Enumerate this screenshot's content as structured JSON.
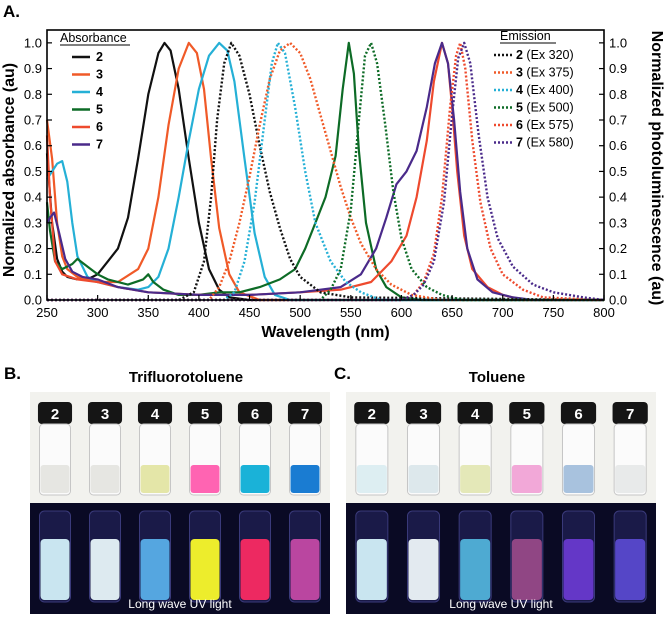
{
  "panels": {
    "a_label": "A.",
    "b_label": "B.",
    "c_label": "C.",
    "b_title": "Trifluorotoluene",
    "c_title": "Toluene",
    "uv_caption": "Long wave UV light",
    "vial_labels": [
      "2",
      "3",
      "4",
      "5",
      "6",
      "7"
    ],
    "daylight_b": [
      "#e6e6e2",
      "#e6e6e2",
      "#e4e6a8",
      "#ff64b2",
      "#1ab2d8",
      "#1a7cd2"
    ],
    "uv_b": [
      "#d8f6ff",
      "#eefcff",
      "#5ab2ee",
      "#ffff2a",
      "#ff2a64",
      "#c84aa8"
    ],
    "daylight_c": [
      "#ddeef2",
      "#dde8ec",
      "#e4e8b8",
      "#f2a8d8",
      "#a8c2de",
      "#e8eaea"
    ],
    "uv_c": [
      "#d8f6ff",
      "#f4fcff",
      "#52b6de",
      "#9a4a8a",
      "#6a3ad2",
      "#5a4ad2"
    ]
  },
  "chart_data": {
    "type": "line",
    "xlabel": "Wavelength (nm)",
    "ylabel_left": "Normalized absorbance (au)",
    "ylabel_right": "Normalized photoluminescence (au)",
    "xlim": [
      250,
      800
    ],
    "ylim": [
      0,
      1.05
    ],
    "xticks": [
      250,
      300,
      350,
      400,
      450,
      500,
      550,
      600,
      650,
      700,
      750,
      800
    ],
    "yticks": [
      0.0,
      0.1,
      0.2,
      0.3,
      0.4,
      0.5,
      0.6,
      0.7,
      0.8,
      0.9,
      1.0
    ],
    "grid": false,
    "legend_absorbance": {
      "title": "Absorbance",
      "entries": [
        {
          "num": "2",
          "text": ""
        },
        {
          "num": "3",
          "text": ""
        },
        {
          "num": "4",
          "text": ""
        },
        {
          "num": "5",
          "text": ""
        },
        {
          "num": "6",
          "text": ""
        },
        {
          "num": "7",
          "text": ""
        }
      ]
    },
    "legend_emission": {
      "title": "Emission",
      "entries": [
        {
          "num": "2",
          "text": " (Ex 320)"
        },
        {
          "num": "3",
          "text": " (Ex 375)"
        },
        {
          "num": "4",
          "text": " (Ex 400)"
        },
        {
          "num": "5",
          "text": " (Ex 500)"
        },
        {
          "num": "6",
          "text": " (Ex 575)"
        },
        {
          "num": "7",
          "text": " (Ex 580)"
        }
      ]
    },
    "colors": {
      "2": "#111111",
      "3": "#f05a28",
      "4": "#25b0d6",
      "5": "#0d6b26",
      "6": "#ee4a2e",
      "7": "#4a2a8a"
    },
    "absorbance": [
      {
        "id": "2",
        "points": [
          [
            250,
            0.57
          ],
          [
            255,
            0.3
          ],
          [
            260,
            0.16
          ],
          [
            265,
            0.11
          ],
          [
            270,
            0.09
          ],
          [
            280,
            0.08
          ],
          [
            290,
            0.08
          ],
          [
            300,
            0.1
          ],
          [
            310,
            0.15
          ],
          [
            320,
            0.2
          ],
          [
            330,
            0.32
          ],
          [
            340,
            0.55
          ],
          [
            350,
            0.8
          ],
          [
            360,
            0.96
          ],
          [
            366,
            1.0
          ],
          [
            372,
            0.97
          ],
          [
            380,
            0.82
          ],
          [
            390,
            0.55
          ],
          [
            400,
            0.3
          ],
          [
            410,
            0.12
          ],
          [
            420,
            0.04
          ],
          [
            430,
            0.01
          ],
          [
            450,
            0.0
          ],
          [
            800,
            0.0
          ]
        ]
      },
      {
        "id": "3",
        "points": [
          [
            250,
            0.7
          ],
          [
            255,
            0.55
          ],
          [
            260,
            0.3
          ],
          [
            265,
            0.17
          ],
          [
            270,
            0.12
          ],
          [
            280,
            0.09
          ],
          [
            300,
            0.07
          ],
          [
            320,
            0.07
          ],
          [
            340,
            0.12
          ],
          [
            350,
            0.2
          ],
          [
            360,
            0.4
          ],
          [
            370,
            0.68
          ],
          [
            380,
            0.9
          ],
          [
            390,
            1.0
          ],
          [
            398,
            0.96
          ],
          [
            405,
            0.82
          ],
          [
            412,
            0.55
          ],
          [
            420,
            0.28
          ],
          [
            430,
            0.1
          ],
          [
            440,
            0.03
          ],
          [
            460,
            0.0
          ],
          [
            800,
            0.0
          ]
        ]
      },
      {
        "id": "4",
        "points": [
          [
            250,
            0.47
          ],
          [
            255,
            0.5
          ],
          [
            260,
            0.53
          ],
          [
            265,
            0.54
          ],
          [
            270,
            0.46
          ],
          [
            275,
            0.3
          ],
          [
            280,
            0.17
          ],
          [
            290,
            0.09
          ],
          [
            300,
            0.07
          ],
          [
            320,
            0.05
          ],
          [
            340,
            0.04
          ],
          [
            350,
            0.05
          ],
          [
            360,
            0.09
          ],
          [
            370,
            0.2
          ],
          [
            380,
            0.4
          ],
          [
            390,
            0.62
          ],
          [
            400,
            0.82
          ],
          [
            410,
            0.95
          ],
          [
            420,
            1.0
          ],
          [
            428,
            0.97
          ],
          [
            435,
            0.85
          ],
          [
            445,
            0.55
          ],
          [
            455,
            0.26
          ],
          [
            465,
            0.09
          ],
          [
            475,
            0.02
          ],
          [
            490,
            0.0
          ],
          [
            800,
            0.0
          ]
        ]
      },
      {
        "id": "5",
        "points": [
          [
            250,
            0.38
          ],
          [
            253,
            0.27
          ],
          [
            258,
            0.15
          ],
          [
            265,
            0.12
          ],
          [
            275,
            0.14
          ],
          [
            280,
            0.16
          ],
          [
            290,
            0.13
          ],
          [
            300,
            0.1
          ],
          [
            310,
            0.08
          ],
          [
            330,
            0.06
          ],
          [
            345,
            0.08
          ],
          [
            350,
            0.1
          ],
          [
            355,
            0.07
          ],
          [
            365,
            0.04
          ],
          [
            380,
            0.02
          ],
          [
            400,
            0.02
          ],
          [
            420,
            0.03
          ],
          [
            440,
            0.03
          ],
          [
            460,
            0.05
          ],
          [
            480,
            0.08
          ],
          [
            495,
            0.12
          ],
          [
            505,
            0.2
          ],
          [
            515,
            0.3
          ],
          [
            525,
            0.4
          ],
          [
            535,
            0.56
          ],
          [
            542,
            0.82
          ],
          [
            548,
            1.0
          ],
          [
            553,
            0.88
          ],
          [
            558,
            0.58
          ],
          [
            565,
            0.3
          ],
          [
            575,
            0.12
          ],
          [
            585,
            0.05
          ],
          [
            600,
            0.01
          ],
          [
            620,
            0.0
          ],
          [
            800,
            0.0
          ]
        ]
      },
      {
        "id": "6",
        "points": [
          [
            250,
            0.64
          ],
          [
            253,
            0.4
          ],
          [
            258,
            0.15
          ],
          [
            265,
            0.1
          ],
          [
            280,
            0.08
          ],
          [
            300,
            0.07
          ],
          [
            320,
            0.05
          ],
          [
            350,
            0.03
          ],
          [
            400,
            0.02
          ],
          [
            450,
            0.02
          ],
          [
            500,
            0.03
          ],
          [
            540,
            0.04
          ],
          [
            570,
            0.07
          ],
          [
            590,
            0.15
          ],
          [
            605,
            0.25
          ],
          [
            615,
            0.4
          ],
          [
            625,
            0.62
          ],
          [
            632,
            0.85
          ],
          [
            640,
            1.0
          ],
          [
            646,
            0.92
          ],
          [
            650,
            0.75
          ],
          [
            655,
            0.5
          ],
          [
            662,
            0.25
          ],
          [
            670,
            0.12
          ],
          [
            685,
            0.05
          ],
          [
            700,
            0.02
          ],
          [
            720,
            0.0
          ],
          [
            800,
            0.0
          ]
        ]
      },
      {
        "id": "7",
        "points": [
          [
            250,
            0.3
          ],
          [
            253,
            0.32
          ],
          [
            257,
            0.34
          ],
          [
            262,
            0.26
          ],
          [
            268,
            0.16
          ],
          [
            275,
            0.11
          ],
          [
            285,
            0.09
          ],
          [
            300,
            0.08
          ],
          [
            320,
            0.05
          ],
          [
            350,
            0.03
          ],
          [
            400,
            0.02
          ],
          [
            450,
            0.02
          ],
          [
            500,
            0.03
          ],
          [
            540,
            0.05
          ],
          [
            560,
            0.1
          ],
          [
            575,
            0.2
          ],
          [
            585,
            0.32
          ],
          [
            595,
            0.45
          ],
          [
            605,
            0.5
          ],
          [
            615,
            0.58
          ],
          [
            625,
            0.75
          ],
          [
            633,
            0.92
          ],
          [
            640,
            1.0
          ],
          [
            646,
            0.92
          ],
          [
            652,
            0.7
          ],
          [
            658,
            0.42
          ],
          [
            665,
            0.2
          ],
          [
            675,
            0.08
          ],
          [
            690,
            0.03
          ],
          [
            710,
            0.01
          ],
          [
            730,
            0.0
          ],
          [
            800,
            0.0
          ]
        ]
      }
    ],
    "emission": [
      {
        "id": "2",
        "points": [
          [
            250,
            0.0
          ],
          [
            380,
            0.0
          ],
          [
            395,
            0.03
          ],
          [
            405,
            0.15
          ],
          [
            412,
            0.4
          ],
          [
            418,
            0.7
          ],
          [
            425,
            0.92
          ],
          [
            432,
            1.0
          ],
          [
            440,
            0.95
          ],
          [
            450,
            0.8
          ],
          [
            460,
            0.6
          ],
          [
            470,
            0.42
          ],
          [
            480,
            0.28
          ],
          [
            490,
            0.16
          ],
          [
            500,
            0.09
          ],
          [
            520,
            0.03
          ],
          [
            550,
            0.01
          ],
          [
            800,
            0.0
          ]
        ]
      },
      {
        "id": "3",
        "points": [
          [
            250,
            0.0
          ],
          [
            410,
            0.0
          ],
          [
            420,
            0.05
          ],
          [
            430,
            0.15
          ],
          [
            440,
            0.3
          ],
          [
            450,
            0.48
          ],
          [
            460,
            0.68
          ],
          [
            470,
            0.86
          ],
          [
            480,
            0.97
          ],
          [
            490,
            1.0
          ],
          [
            500,
            0.96
          ],
          [
            510,
            0.86
          ],
          [
            520,
            0.72
          ],
          [
            530,
            0.58
          ],
          [
            540,
            0.44
          ],
          [
            550,
            0.32
          ],
          [
            560,
            0.22
          ],
          [
            575,
            0.12
          ],
          [
            590,
            0.06
          ],
          [
            610,
            0.02
          ],
          [
            640,
            0.0
          ],
          [
            800,
            0.0
          ]
        ]
      },
      {
        "id": "4",
        "points": [
          [
            250,
            0.0
          ],
          [
            425,
            0.0
          ],
          [
            435,
            0.03
          ],
          [
            445,
            0.15
          ],
          [
            455,
            0.38
          ],
          [
            465,
            0.7
          ],
          [
            472,
            0.92
          ],
          [
            478,
            1.0
          ],
          [
            485,
            0.96
          ],
          [
            495,
            0.75
          ],
          [
            505,
            0.5
          ],
          [
            515,
            0.3
          ],
          [
            530,
            0.15
          ],
          [
            545,
            0.07
          ],
          [
            560,
            0.03
          ],
          [
            580,
            0.0
          ],
          [
            800,
            0.0
          ]
        ]
      },
      {
        "id": "5",
        "points": [
          [
            250,
            0.0
          ],
          [
            520,
            0.0
          ],
          [
            530,
            0.04
          ],
          [
            540,
            0.12
          ],
          [
            550,
            0.35
          ],
          [
            558,
            0.7
          ],
          [
            564,
            0.95
          ],
          [
            570,
            1.0
          ],
          [
            576,
            0.92
          ],
          [
            584,
            0.68
          ],
          [
            592,
            0.42
          ],
          [
            600,
            0.24
          ],
          [
            610,
            0.12
          ],
          [
            625,
            0.05
          ],
          [
            640,
            0.02
          ],
          [
            660,
            0.0
          ],
          [
            800,
            0.0
          ]
        ]
      },
      {
        "id": "6",
        "points": [
          [
            250,
            0.0
          ],
          [
            600,
            0.0
          ],
          [
            612,
            0.02
          ],
          [
            622,
            0.07
          ],
          [
            632,
            0.18
          ],
          [
            640,
            0.4
          ],
          [
            648,
            0.75
          ],
          [
            654,
            0.95
          ],
          [
            658,
            1.0
          ],
          [
            663,
            0.9
          ],
          [
            670,
            0.62
          ],
          [
            678,
            0.38
          ],
          [
            688,
            0.2
          ],
          [
            700,
            0.1
          ],
          [
            720,
            0.04
          ],
          [
            740,
            0.01
          ],
          [
            800,
            0.0
          ]
        ]
      },
      {
        "id": "7",
        "points": [
          [
            250,
            0.0
          ],
          [
            600,
            0.0
          ],
          [
            612,
            0.02
          ],
          [
            622,
            0.06
          ],
          [
            632,
            0.15
          ],
          [
            642,
            0.38
          ],
          [
            650,
            0.72
          ],
          [
            656,
            0.94
          ],
          [
            662,
            1.0
          ],
          [
            668,
            0.92
          ],
          [
            676,
            0.65
          ],
          [
            685,
            0.4
          ],
          [
            695,
            0.24
          ],
          [
            710,
            0.13
          ],
          [
            730,
            0.06
          ],
          [
            750,
            0.03
          ],
          [
            780,
            0.01
          ],
          [
            800,
            0.0
          ]
        ]
      }
    ]
  }
}
